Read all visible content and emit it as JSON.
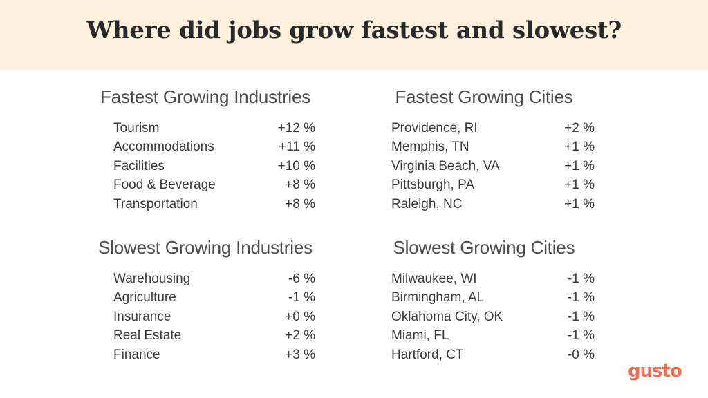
{
  "title": "Where did jobs grow fastest and slowest?",
  "sections": [
    {
      "heading": "Fastest Growing Industries",
      "rows": [
        {
          "name": "Tourism",
          "value": "+12 %"
        },
        {
          "name": "Accommodations",
          "value": "+11 %"
        },
        {
          "name": "Facilities",
          "value": "+10 %"
        },
        {
          "name": "Food & Beverage",
          "value": "+8 %"
        },
        {
          "name": "Transportation",
          "value": "+8 %"
        }
      ]
    },
    {
      "heading": "Fastest Growing Cities",
      "rows": [
        {
          "name": "Providence, RI",
          "value": "+2 %"
        },
        {
          "name": "Memphis, TN",
          "value": "+1 %"
        },
        {
          "name": "Virginia Beach, VA",
          "value": "+1 %"
        },
        {
          "name": "Pittsburgh, PA",
          "value": "+1 %"
        },
        {
          "name": "Raleigh, NC",
          "value": "+1 %"
        }
      ]
    },
    {
      "heading": "Slowest Growing Industries",
      "rows": [
        {
          "name": "Warehousing",
          "value": "-6 %"
        },
        {
          "name": "Agriculture",
          "value": "-1 %"
        },
        {
          "name": "Insurance",
          "value": "+0 %"
        },
        {
          "name": "Real Estate",
          "value": "+2 %"
        },
        {
          "name": "Finance",
          "value": "+3 %"
        }
      ]
    },
    {
      "heading": "Slowest Growing Cities",
      "rows": [
        {
          "name": "Milwaukee, WI",
          "value": "-1 %"
        },
        {
          "name": "Birmingham, AL",
          "value": "-1 %"
        },
        {
          "name": "Oklahoma City, OK",
          "value": "-1 %"
        },
        {
          "name": "Miami, FL",
          "value": "-1 %"
        },
        {
          "name": "Hartford, CT",
          "value": "-0 %"
        }
      ]
    }
  ],
  "logo": "gusto",
  "colors": {
    "header_bg": "#fdf0dc",
    "brand": "#f26d4f",
    "text": "#3a3a3a"
  }
}
